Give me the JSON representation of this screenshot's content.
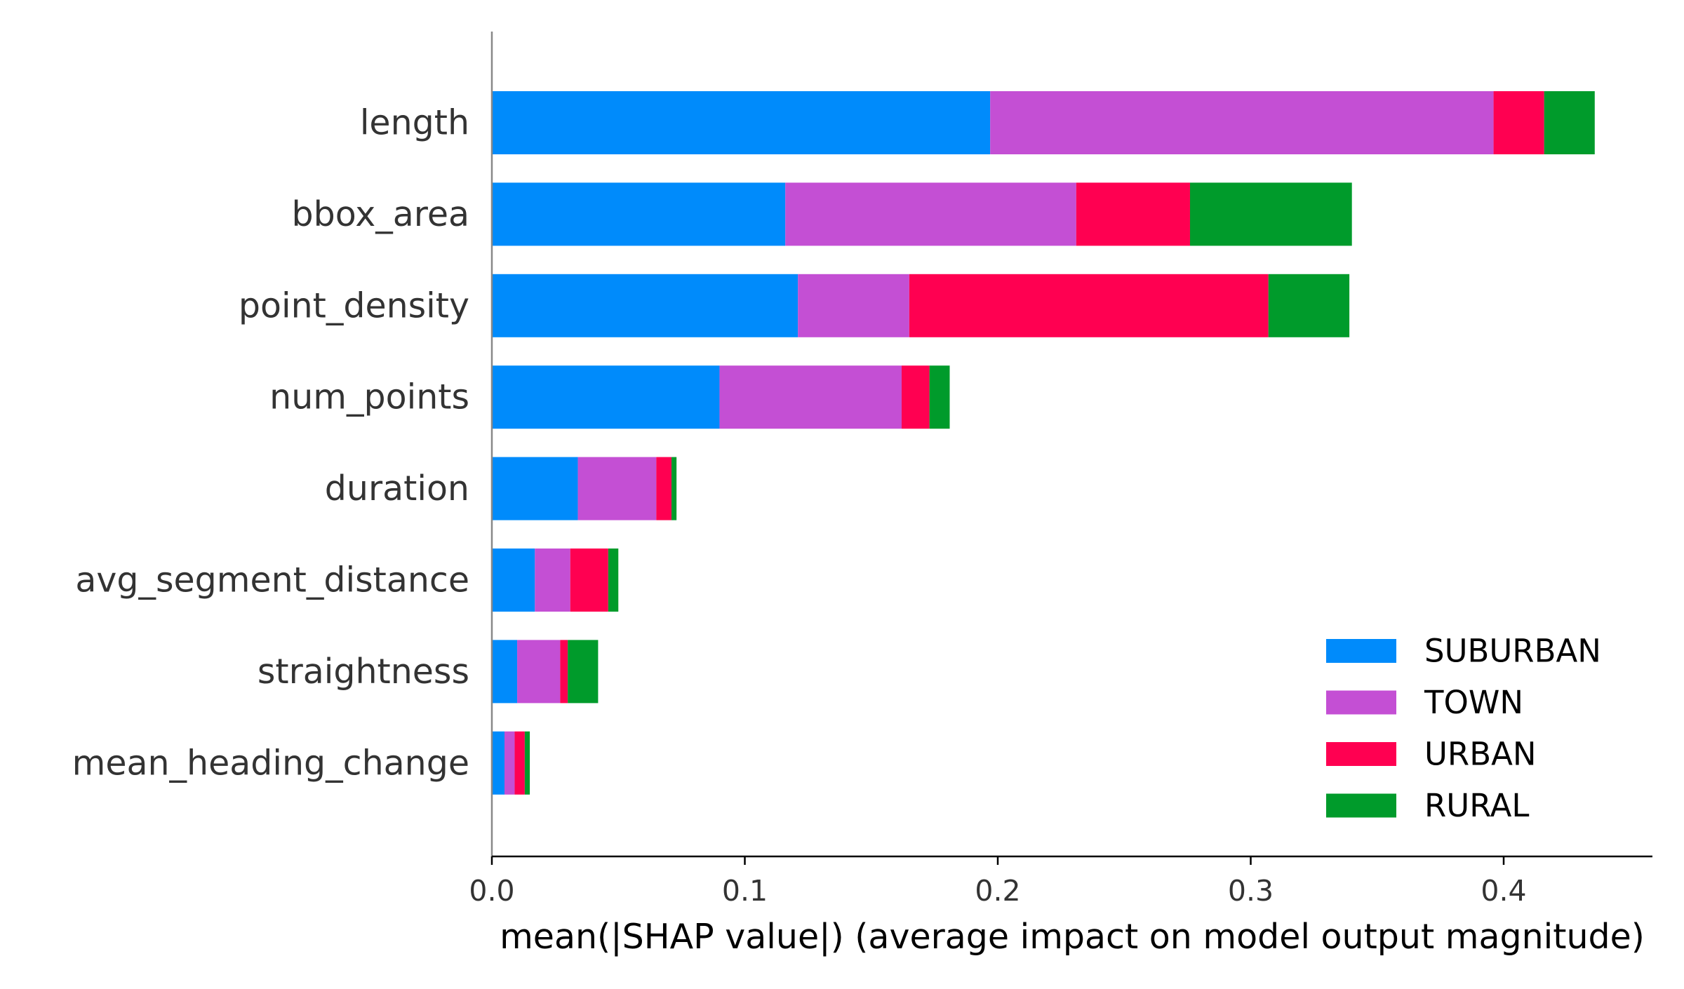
{
  "chart_data": {
    "type": "bar",
    "orientation": "horizontal",
    "stacked": true,
    "categories": [
      "length",
      "bbox_area",
      "point_density",
      "num_points",
      "duration",
      "avg_segment_distance",
      "straightness",
      "mean_heading_change"
    ],
    "series": [
      {
        "name": "SUBURBAN",
        "color": "#008bfb",
        "values": [
          0.197,
          0.116,
          0.121,
          0.09,
          0.034,
          0.017,
          0.01,
          0.005
        ]
      },
      {
        "name": "TOWN",
        "color": "#c44fd4",
        "values": [
          0.199,
          0.115,
          0.044,
          0.072,
          0.031,
          0.014,
          0.017,
          0.004
        ]
      },
      {
        "name": "URBAN",
        "color": "#ff0051",
        "values": [
          0.02,
          0.045,
          0.142,
          0.011,
          0.006,
          0.015,
          0.003,
          0.004
        ]
      },
      {
        "name": "RURAL",
        "color": "#009b2b",
        "values": [
          0.02,
          0.064,
          0.032,
          0.008,
          0.002,
          0.004,
          0.012,
          0.002
        ]
      }
    ],
    "xlabel": "mean(|SHAP value|) (average impact on model output magnitude)",
    "ylabel": "",
    "title": "",
    "xlim": [
      0,
      0.459
    ],
    "xticks": [
      "0.0",
      "0.1",
      "0.2",
      "0.3",
      "0.4"
    ],
    "legend_position": "lower-right",
    "grid": false
  }
}
